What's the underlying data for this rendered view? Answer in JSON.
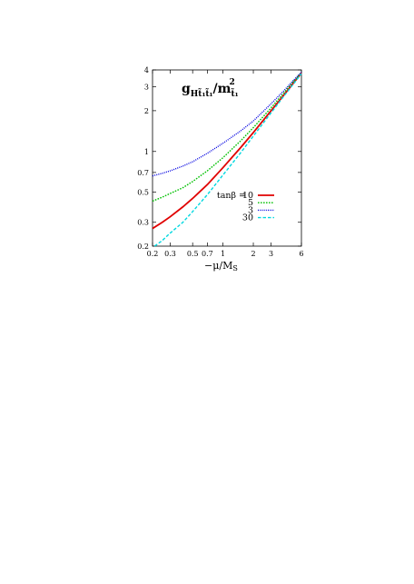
{
  "chart_data": {
    "type": "line",
    "title_main": "g",
    "title_sub": "Ht̃₁t̃₁",
    "title_sep": "/m",
    "title_sub2": "t̃₁",
    "title_sup2": "2",
    "xlabel": "−μ/M",
    "xlabel_sub": "S",
    "xscale": "log",
    "yscale": "log",
    "xlim": [
      0.2,
      6
    ],
    "ylim": [
      0.2,
      4
    ],
    "xticks": [
      0.2,
      0.3,
      0.5,
      0.7,
      1,
      2,
      3,
      6
    ],
    "xtick_labels": [
      "0.2",
      "0.3",
      "0.5",
      "0.7",
      "1",
      "2",
      "3",
      "6"
    ],
    "yticks": [
      0.2,
      0.3,
      0.5,
      0.7,
      1,
      2,
      3,
      4
    ],
    "ytick_labels": [
      "0.2",
      "0.3",
      "0.5",
      "0.7",
      "1",
      "2",
      "3",
      "4"
    ],
    "legend_header": "tanβ =",
    "legend_position": "center-right",
    "series": [
      {
        "name": "10",
        "color": "#e00000",
        "dash": "solid",
        "x": [
          0.2,
          0.25,
          0.3,
          0.4,
          0.5,
          0.7,
          1,
          1.5,
          2,
          3,
          4,
          5,
          6
        ],
        "y": [
          0.27,
          0.3,
          0.33,
          0.39,
          0.45,
          0.57,
          0.76,
          1.07,
          1.38,
          2.0,
          2.6,
          3.2,
          3.8
        ]
      },
      {
        "name": "5",
        "color": "#00c000",
        "dash": "dotted",
        "x": [
          0.2,
          0.25,
          0.3,
          0.4,
          0.5,
          0.7,
          1,
          1.5,
          2,
          3,
          4,
          5,
          6
        ],
        "y": [
          0.43,
          0.46,
          0.49,
          0.54,
          0.6,
          0.72,
          0.9,
          1.2,
          1.5,
          2.1,
          2.7,
          3.3,
          3.8
        ]
      },
      {
        "name": "3",
        "color": "#0000e0",
        "dash": "dotted-fine",
        "x": [
          0.2,
          0.25,
          0.3,
          0.4,
          0.5,
          0.7,
          1,
          1.5,
          2,
          3,
          4,
          5,
          6
        ],
        "y": [
          0.66,
          0.69,
          0.72,
          0.78,
          0.84,
          0.97,
          1.15,
          1.42,
          1.68,
          2.25,
          2.8,
          3.35,
          3.85
        ]
      },
      {
        "name": "30",
        "color": "#00d8e0",
        "dash": "dashed",
        "x": [
          0.21,
          0.25,
          0.3,
          0.4,
          0.5,
          0.7,
          1,
          1.5,
          2,
          3,
          4,
          5,
          6
        ],
        "y": [
          0.2,
          0.22,
          0.25,
          0.3,
          0.36,
          0.48,
          0.67,
          0.98,
          1.3,
          1.93,
          2.55,
          3.15,
          3.75
        ]
      }
    ]
  }
}
